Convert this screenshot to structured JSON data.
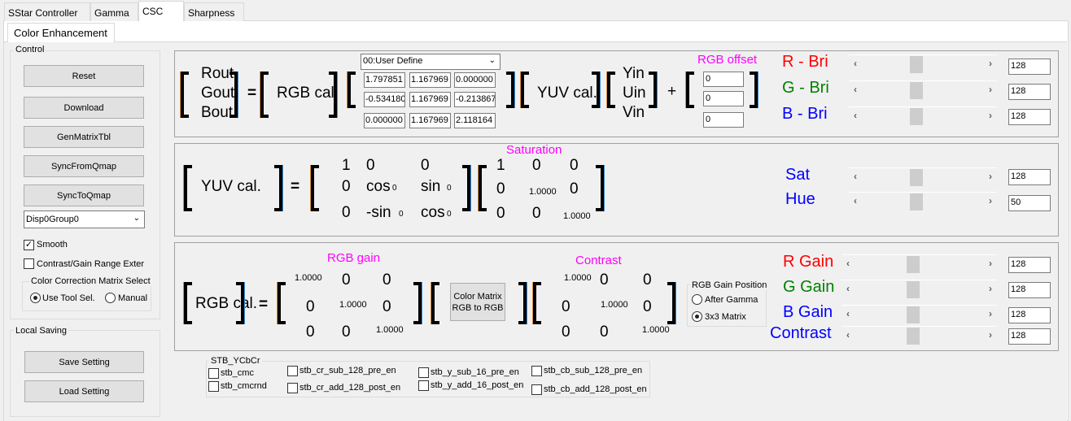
{
  "tabs": [
    {
      "label": "SStar Controller"
    },
    {
      "label": "Gamma"
    },
    {
      "label": "CSC",
      "selected": true
    },
    {
      "label": "Sharpness"
    }
  ],
  "subtab": "Color Enhancement",
  "control": {
    "title": "Control",
    "buttons": [
      "Reset",
      "Download",
      "GenMatrixTbl",
      "SyncFromQmap",
      "SyncToQmap"
    ],
    "group_select": "Disp0Group0",
    "smooth": {
      "label": "Smooth",
      "checked": true
    },
    "range": {
      "label": "Contrast/Gain Range Exter",
      "checked": false
    },
    "ccm": {
      "title": "Color Correction Matrix Select",
      "options": [
        {
          "label": "Use Tool Sel.",
          "checked": true
        },
        {
          "label": "Manual",
          "checked": false
        }
      ]
    }
  },
  "local_saving": {
    "title": "Local Saving",
    "save": "Save Setting",
    "load": "Load Setting"
  },
  "csc": {
    "out": [
      "Rout",
      "Gout",
      "Bout"
    ],
    "eq": "=",
    "rgb_cal": "RGB cal.",
    "preset": "00:User Define",
    "matrix": [
      [
        "1.797851",
        "1.167969",
        "0.000000"
      ],
      [
        "-0.534180",
        "1.167969",
        "-0.213867"
      ],
      [
        "0.000000",
        "1.167969",
        "2.118164"
      ]
    ],
    "yuv_cal": "YUV cal.",
    "in": [
      "Yin",
      "Uin",
      "Vin"
    ],
    "plus": "+",
    "offset_label": "RGB offset",
    "offsets": [
      "0",
      "0",
      "0"
    ]
  },
  "bri": [
    {
      "label": "R - Bri",
      "color": "#ff0000",
      "value": "128"
    },
    {
      "label": "G - Bri",
      "color": "#008000",
      "value": "128"
    },
    {
      "label": "B - Bri",
      "color": "#0000ff",
      "value": "128"
    }
  ],
  "yuv": {
    "lhs": "YUV cal.",
    "eq": "=",
    "m1": [
      "1",
      "0",
      "0",
      "0",
      "cos",
      "sin",
      "0",
      "-sin",
      "cos"
    ],
    "angle": "0",
    "saturation": "Saturation",
    "m2": [
      "1",
      "0",
      "0",
      "0",
      "1.0000",
      "0",
      "0",
      "0",
      "1.0000"
    ]
  },
  "sathue": [
    {
      "label": "Sat",
      "color": "#0000ff",
      "value": "128"
    },
    {
      "label": "Hue",
      "color": "#0000ff",
      "value": "50"
    }
  ],
  "gain": {
    "lhs": "RGB cal.",
    "eq": "=",
    "gain_label": "RGB gain",
    "gm": [
      "1.0000",
      "0",
      "0",
      "0",
      "1.0000",
      "0",
      "0",
      "0",
      "1.0000"
    ],
    "cm_button": "Color Matrix\nRGB to RGB",
    "contrast_label": "Contrast",
    "cm": [
      "1.0000",
      "0",
      "0",
      "0",
      "1.0000",
      "0",
      "0",
      "0",
      "1.0000"
    ],
    "position": {
      "title": "RGB Gain Position",
      "options": [
        {
          "label": "After Gamma",
          "checked": false
        },
        {
          "label": "3x3 Matrix",
          "checked": true
        }
      ]
    }
  },
  "gains": [
    {
      "label": "R Gain",
      "color": "#ff0000",
      "value": "128"
    },
    {
      "label": "G Gain",
      "color": "#008000",
      "value": "128"
    },
    {
      "label": "B Gain",
      "color": "#0000ff",
      "value": "128"
    },
    {
      "label": "Contrast",
      "color": "#0000ff",
      "value": "128"
    }
  ],
  "stb": {
    "title": "STB_YCbCr",
    "items": [
      {
        "label": "stb_cmc"
      },
      {
        "label": "stb_cmcrnd"
      },
      {
        "label": "stb_cr_sub_128_pre_en"
      },
      {
        "label": "stb_cr_add_128_post_en"
      },
      {
        "label": "stb_y_sub_16_pre_en"
      },
      {
        "label": "stb_y_add_16_post_en"
      },
      {
        "label": "stb_cb_sub_128_pre_en"
      },
      {
        "label": "stb_cb_add_128_post_en"
      }
    ]
  }
}
